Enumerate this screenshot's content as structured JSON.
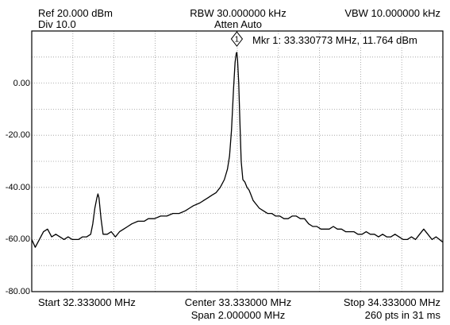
{
  "header": {
    "ref": "Ref 20.000 dBm",
    "div": "Div 10.0",
    "rbw": "RBW 30.000000 kHz",
    "atten": "Atten Auto",
    "vbw": "VBW 10.000000 kHz"
  },
  "marker": {
    "id": "1",
    "label": "Mkr 1: 33.330773 MHz, 11.764 dBm",
    "freq_mhz": 33.330773,
    "level_dbm": 11.764
  },
  "footer": {
    "start": "Start 32.333000 MHz",
    "center": "Center 33.333000 MHz",
    "stop": "Stop 34.333000 MHz",
    "span": "Span 2.000000 MHz",
    "points": "260 pts in 31 ms"
  },
  "chart_data": {
    "type": "line",
    "xlim": [
      32.333,
      34.333
    ],
    "ylim": [
      -80,
      20
    ],
    "grid": true,
    "grid_divisions_x": 10,
    "grid_divisions_y": 10,
    "y_tick_values": [
      0,
      -20,
      -40,
      -60,
      -80
    ],
    "y_tick_labels": [
      "0.00",
      "-20.00",
      "-40.00",
      "-60.00",
      "-80.00"
    ],
    "colors": {
      "trace": "#000000",
      "grid": "#9a9a9a",
      "frame": "#000000"
    },
    "series": [
      {
        "x": [
          32.333,
          32.35,
          32.37,
          32.39,
          32.41,
          32.43,
          32.45,
          32.47,
          32.49,
          32.51,
          32.53,
          32.56,
          32.58,
          32.6,
          32.62,
          32.63,
          32.64,
          32.65,
          32.655,
          32.66,
          32.67,
          32.68,
          32.7,
          32.72,
          32.74,
          32.76,
          32.78,
          32.8,
          32.82,
          32.85,
          32.88,
          32.9,
          32.93,
          32.96,
          32.99,
          33.02,
          33.05,
          33.08,
          33.1,
          33.12,
          33.15,
          33.17,
          33.19,
          33.21,
          33.23,
          33.25,
          33.27,
          33.285,
          33.295,
          33.305,
          33.315,
          33.322,
          33.328,
          33.3308,
          33.334,
          33.34,
          33.346,
          33.352,
          33.36,
          33.37,
          33.38,
          33.39,
          33.4,
          33.41,
          33.42,
          33.44,
          33.46,
          33.48,
          33.5,
          33.52,
          33.54,
          33.56,
          33.58,
          33.6,
          33.62,
          33.64,
          33.66,
          33.68,
          33.7,
          33.72,
          33.74,
          33.76,
          33.78,
          33.8,
          33.82,
          33.84,
          33.86,
          33.88,
          33.9,
          33.92,
          33.94,
          33.96,
          33.98,
          34.0,
          34.02,
          34.04,
          34.06,
          34.08,
          34.1,
          34.12,
          34.14,
          34.16,
          34.18,
          34.2,
          34.22,
          34.24,
          34.26,
          34.28,
          34.3,
          34.333
        ],
        "y": [
          -60,
          -63,
          -60,
          -57,
          -56,
          -59,
          -58,
          -59,
          -60,
          -59,
          -60,
          -60,
          -59,
          -59,
          -58,
          -54,
          -48,
          -44,
          -42.5,
          -44,
          -52,
          -58,
          -58,
          -57,
          -59,
          -57,
          -56,
          -55,
          -54,
          -53,
          -53,
          -52,
          -52,
          -51,
          -51,
          -50,
          -50,
          -49,
          -48,
          -47,
          -46,
          -45,
          -44,
          -43,
          -42,
          -40,
          -37,
          -33,
          -28,
          -18,
          -2,
          8,
          11.5,
          11.764,
          9,
          0,
          -16,
          -30,
          -37,
          -38,
          -40,
          -41,
          -43,
          -45,
          -46,
          -48,
          -49,
          -50,
          -50,
          -51,
          -51,
          -52,
          -52,
          -51,
          -51,
          -52,
          -52,
          -54,
          -55,
          -55,
          -56,
          -56,
          -56,
          -55,
          -56,
          -56,
          -57,
          -57,
          -57,
          -58,
          -58,
          -57,
          -58,
          -58,
          -59,
          -58,
          -59,
          -59,
          -58,
          -59,
          -60,
          -60,
          -59,
          -60,
          -58,
          -56,
          -58,
          -60,
          -59,
          -61
        ]
      }
    ]
  }
}
